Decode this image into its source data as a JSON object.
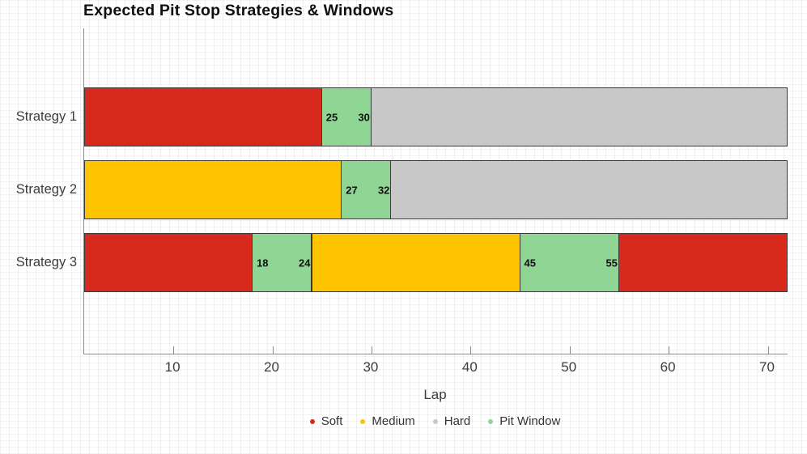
{
  "chart_data": {
    "type": "bar",
    "variant": "horizontal-stacked-timeline",
    "title": "Expected Pit Stop Strategies & Windows",
    "xlabel": "Lap",
    "xlim": [
      1,
      72
    ],
    "x_ticks": [
      10,
      20,
      30,
      40,
      50,
      60,
      70
    ],
    "grid": "faint graph-paper texture over whole canvas, no inner gridlines",
    "legend_position": "bottom-center",
    "categories": [
      "Strategy 1",
      "Strategy 2",
      "Strategy 3"
    ],
    "legend": [
      {
        "label": "Soft",
        "color": "#d7291c"
      },
      {
        "label": "Medium",
        "color": "#ffc400"
      },
      {
        "label": "Hard",
        "color": "#c8c8c8"
      },
      {
        "label": "Pit Window",
        "color": "#8fd694"
      }
    ],
    "rows": [
      {
        "label": "Strategy 1",
        "segments": [
          {
            "compound": "Soft",
            "start": 1,
            "end": 25
          },
          {
            "compound": "Pit Window",
            "start": 25,
            "end": 30,
            "edge_labels": [
              "25",
              "30"
            ]
          },
          {
            "compound": "Hard",
            "start": 30,
            "end": 72
          }
        ]
      },
      {
        "label": "Strategy 2",
        "segments": [
          {
            "compound": "Medium",
            "start": 1,
            "end": 27
          },
          {
            "compound": "Pit Window",
            "start": 27,
            "end": 32,
            "edge_labels": [
              "27",
              "32"
            ]
          },
          {
            "compound": "Hard",
            "start": 32,
            "end": 72
          }
        ]
      },
      {
        "label": "Strategy 3",
        "segments": [
          {
            "compound": "Soft",
            "start": 1,
            "end": 18
          },
          {
            "compound": "Pit Window",
            "start": 18,
            "end": 24,
            "edge_labels": [
              "18",
              "24"
            ]
          },
          {
            "compound": "Medium",
            "start": 24,
            "end": 45
          },
          {
            "compound": "Pit Window",
            "start": 45,
            "end": 55,
            "edge_labels": [
              "45",
              "55"
            ]
          },
          {
            "compound": "Soft",
            "start": 55,
            "end": 72
          }
        ]
      }
    ]
  },
  "colors": {
    "axis_line": "#8a8a8a",
    "tick_label": "#3c3c3c",
    "title": "#0f0f0f",
    "bar_border": "#3a3a3a",
    "value_label": "#111111",
    "legend_label": "#333333"
  }
}
